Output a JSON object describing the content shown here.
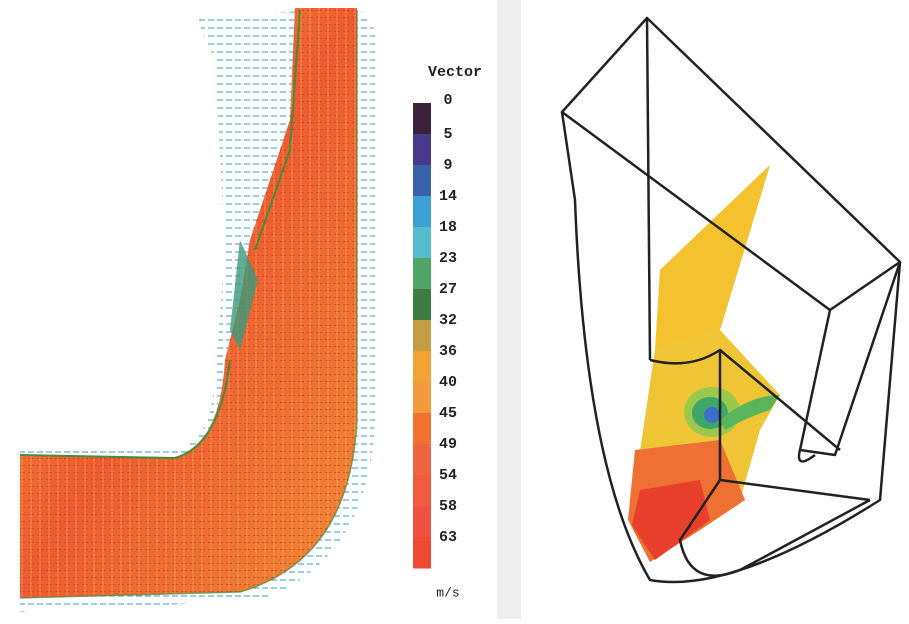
{
  "colorbar": {
    "title": "Vector",
    "unit": "m/s",
    "ticks": [
      0,
      5,
      9,
      14,
      18,
      23,
      27,
      32,
      36,
      40,
      45,
      49,
      54,
      58,
      63
    ],
    "colors": [
      "#3b2139",
      "#4a3a8c",
      "#3a62aa",
      "#3c9fd6",
      "#56bccd",
      "#4ea566",
      "#3f7c3f",
      "#c49d45",
      "#f2a232",
      "#f59a3c",
      "#f1722f",
      "#ef6440",
      "#f05b41",
      "#f05242",
      "#ef4a32"
    ]
  }
}
